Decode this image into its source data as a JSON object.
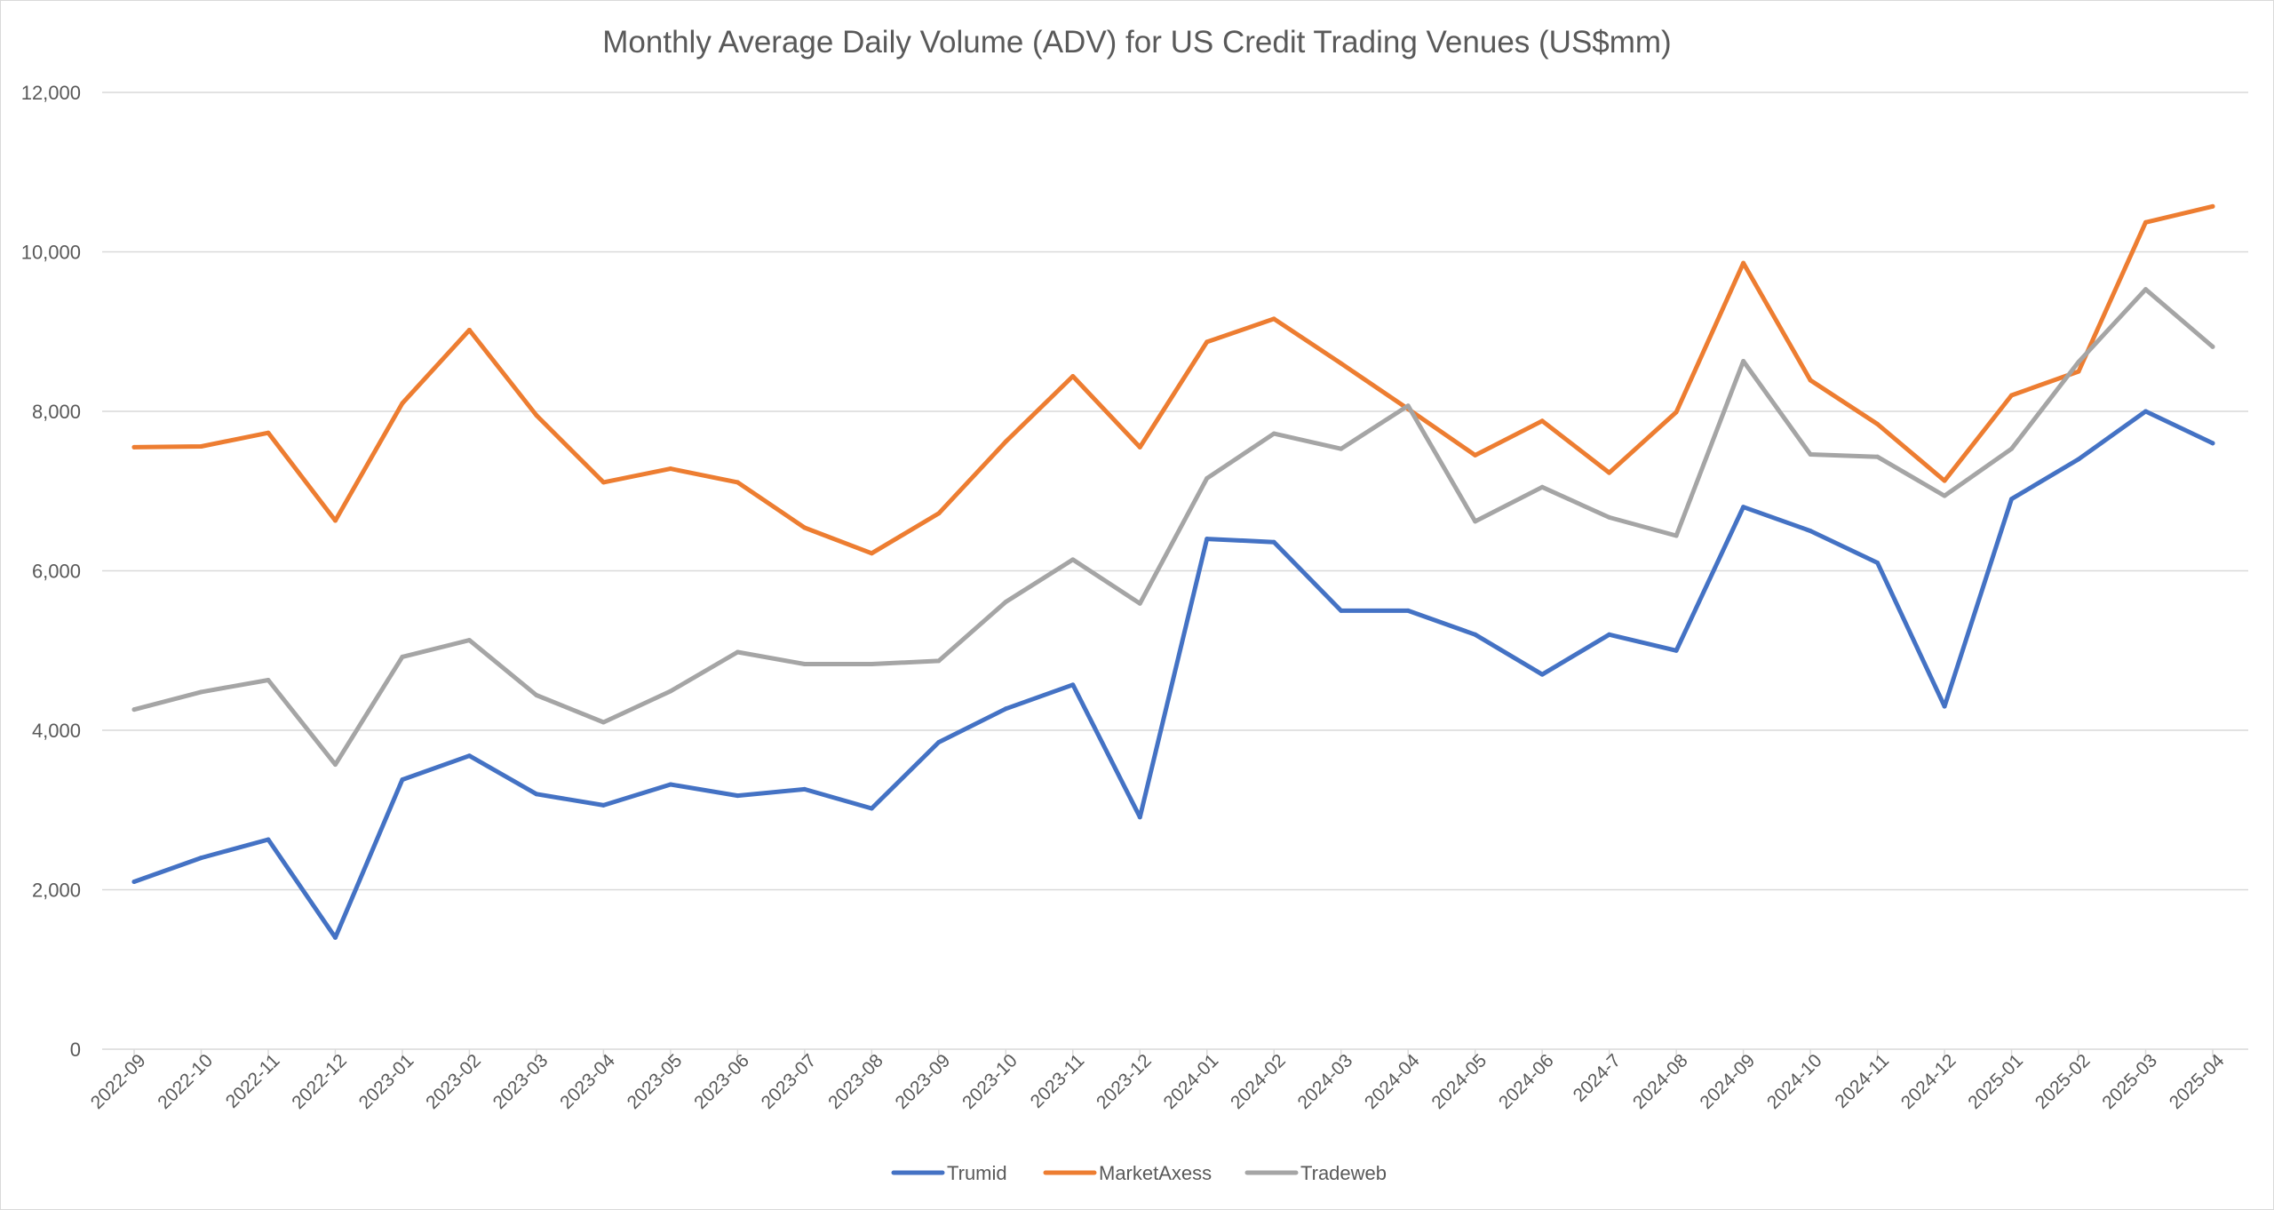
{
  "chart_data": {
    "type": "line",
    "title": "Monthly Average Daily Volume (ADV) for US Credit Trading Venues (US$mm)",
    "xlabel": "",
    "ylabel": "",
    "ylim": [
      0,
      12000
    ],
    "yticks": [
      "0",
      "2,000",
      "4,000",
      "6,000",
      "8,000",
      "10,000",
      "12,000"
    ],
    "grid": true,
    "legend_position": "bottom",
    "categories": [
      "2022-09",
      "2022-10",
      "2022-11",
      "2022-12",
      "2023-01",
      "2023-02",
      "2023-03",
      "2023-04",
      "2023-05",
      "2023-06",
      "2023-07",
      "2023-08",
      "2023-09",
      "2023-10",
      "2023-11",
      "2023-12",
      "2024-01",
      "2024-02",
      "2024-03",
      "2024-04",
      "2024-05",
      "2024-06",
      "2024-7",
      "2024-08",
      "2024-09",
      "2024-10",
      "2024-11",
      "2024-12",
      "2025-01",
      "2025-02",
      "2025-03",
      "2025-04"
    ],
    "series": [
      {
        "name": "Trumid",
        "color": "#4472c4",
        "values": [
          2100,
          2400,
          2630,
          1400,
          3380,
          3680,
          3200,
          3060,
          3320,
          3180,
          3260,
          3020,
          3850,
          4270,
          4570,
          2910,
          6400,
          6360,
          5500,
          5500,
          5200,
          4700,
          5200,
          5000,
          6800,
          6500,
          6100,
          4300,
          6900,
          7400,
          8000,
          7600
        ]
      },
      {
        "name": "MarketAxess",
        "color": "#ed7d31",
        "values": [
          7550,
          7560,
          7730,
          6630,
          8100,
          9020,
          7950,
          7110,
          7280,
          7110,
          6540,
          6220,
          6720,
          7620,
          8440,
          7550,
          8870,
          9160,
          8600,
          8030,
          7450,
          7880,
          7230,
          7990,
          9860,
          8390,
          7840,
          7130,
          8200,
          8500,
          10370,
          10570
        ]
      },
      {
        "name": "Tradeweb",
        "color": "#a5a5a5",
        "values": [
          4260,
          4480,
          4630,
          3570,
          4920,
          5130,
          4440,
          4100,
          4490,
          4980,
          4830,
          4830,
          4870,
          5610,
          6140,
          5590,
          7160,
          7720,
          7530,
          8070,
          6620,
          7050,
          6670,
          6440,
          8630,
          7460,
          7430,
          6940,
          7530,
          8620,
          9530,
          8810
        ]
      }
    ]
  }
}
